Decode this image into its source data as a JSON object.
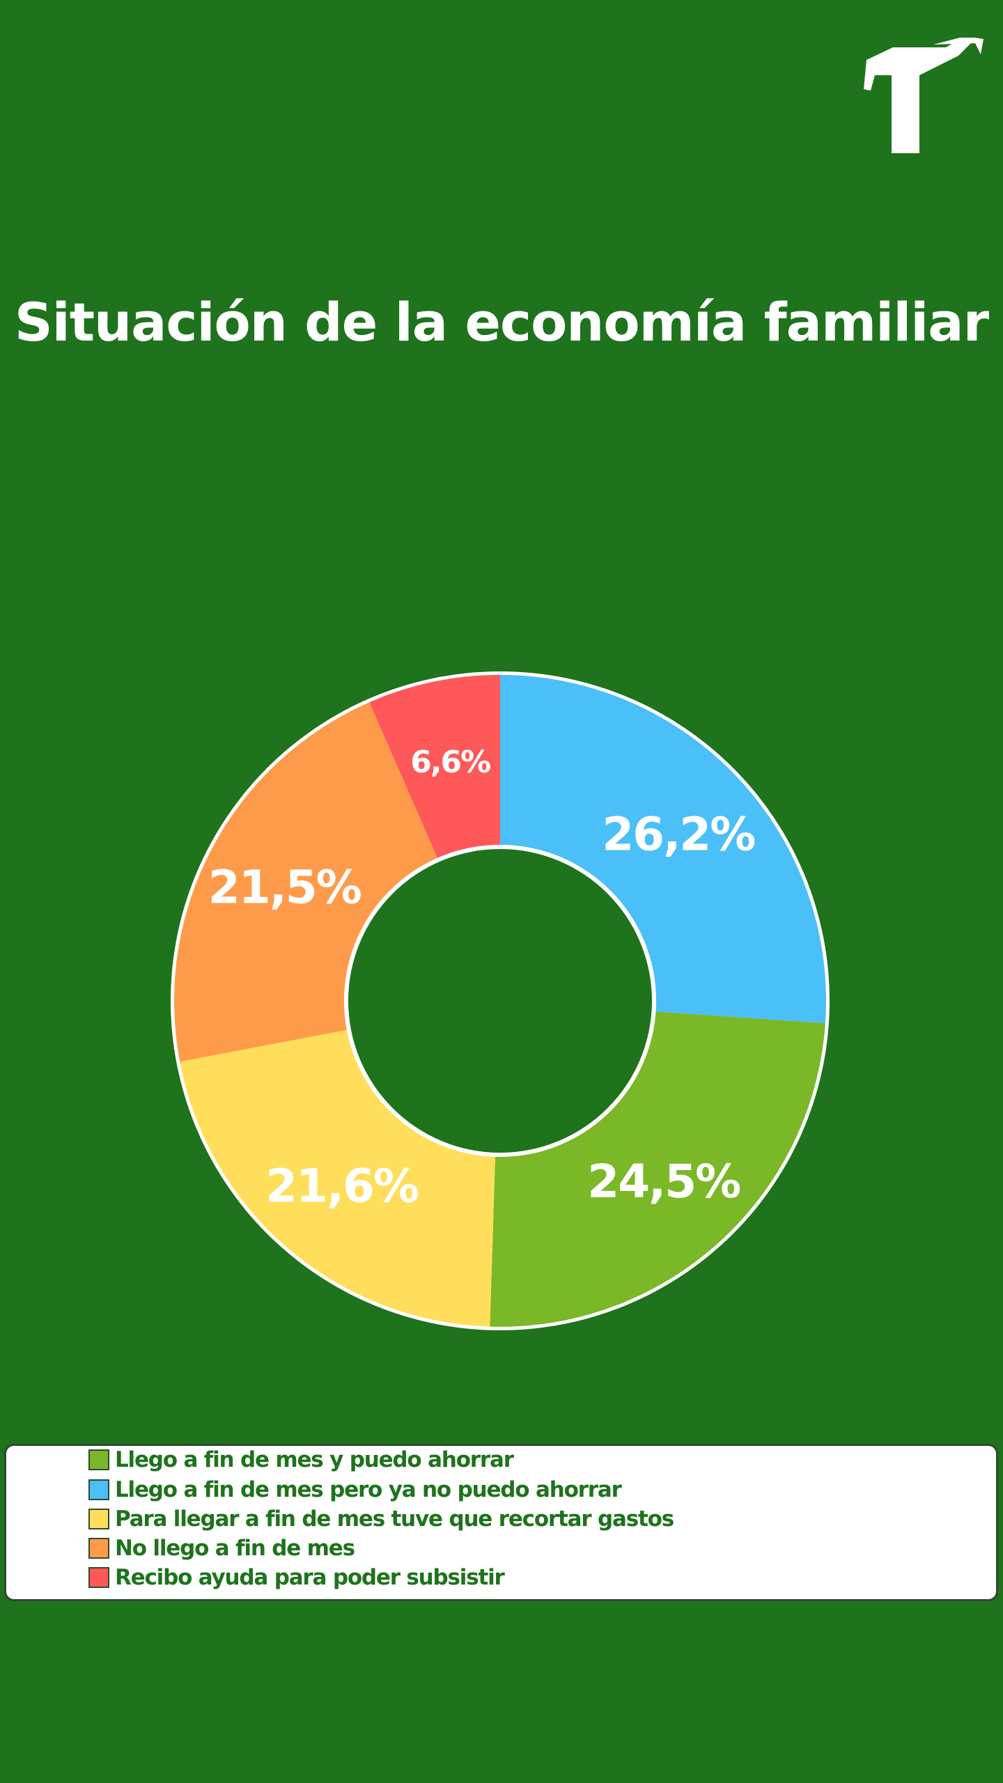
{
  "header": {
    "logo_icon": "arrow-branch-logo-icon"
  },
  "chart_data": {
    "type": "pie",
    "title": "Situación de la economía familiar",
    "donut": true,
    "slices": [
      {
        "label": "Llego a fin de mes pero ya no puedo ahorrar",
        "value": 26.2,
        "display": "26,2%",
        "color": "#4BBFF8"
      },
      {
        "label": "Llego a fin de mes y puedo ahorrar",
        "value": 24.5,
        "display": "24,5%",
        "color": "#7AB827"
      },
      {
        "label": "Para llegar a fin de mes tuve que recortar gastos",
        "value": 21.6,
        "display": "21,6%",
        "color": "#FEDE5A"
      },
      {
        "label": "No llego a fin de mes",
        "value": 21.5,
        "display": "21,5%",
        "color": "#FE9B4A"
      },
      {
        "label": "Recibo ayuda para poder subsistir",
        "value": 6.6,
        "display": "6,6%",
        "color": "#FE5859"
      }
    ],
    "legend": {
      "placement": "bottom",
      "items": [
        {
          "label": "Llego a fin de mes y puedo ahorrar",
          "color": "#7AB827"
        },
        {
          "label": "Llego a fin de mes pero ya no puedo ahorrar",
          "color": "#4BBFF8"
        },
        {
          "label": "Para llegar a fin de mes tuve que recortar gastos",
          "color": "#FEDE5A"
        },
        {
          "label": "No llego a fin de mes",
          "color": "#FE9B4A"
        },
        {
          "label": "Recibo ayuda para poder subsistir",
          "color": "#FE5859"
        }
      ]
    }
  }
}
